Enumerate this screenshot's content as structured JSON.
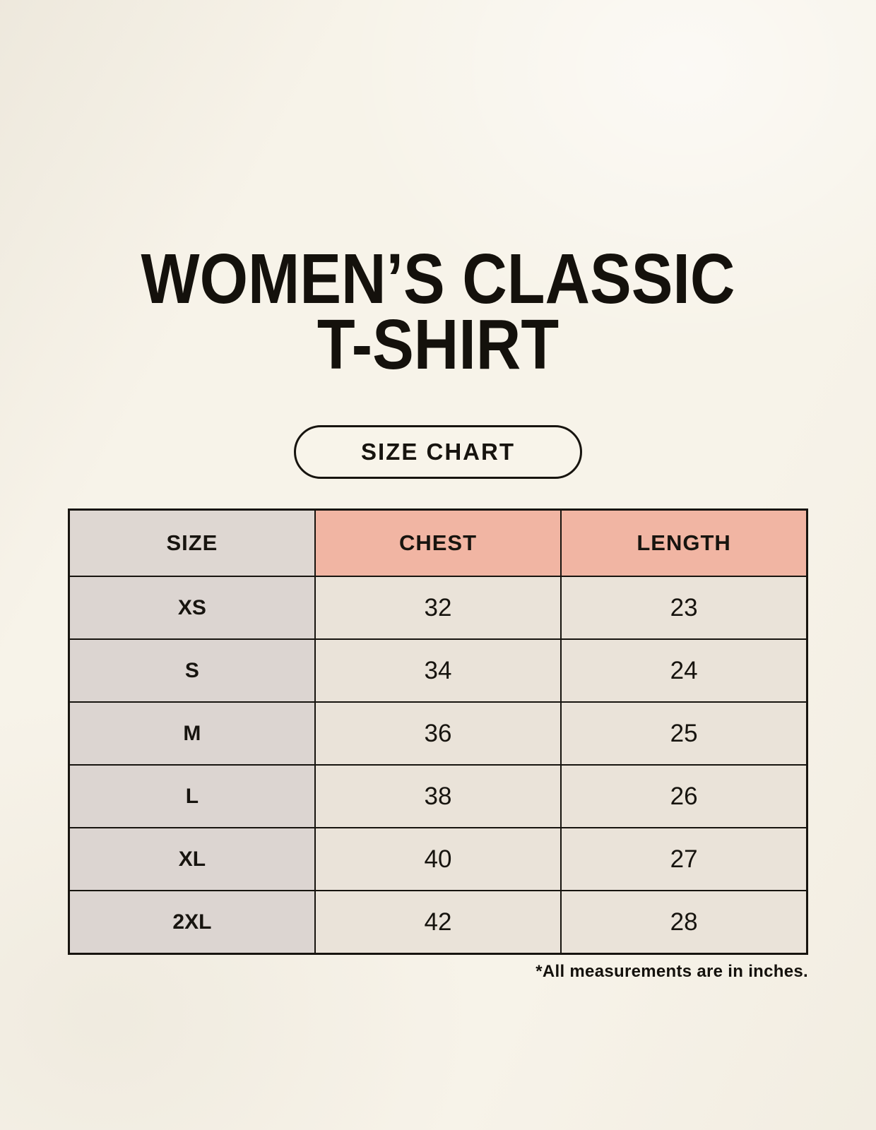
{
  "page": {
    "title_line1": "WOMEN’S CLASSIC",
    "title_line2": "T-SHIRT",
    "badge_label": "SIZE CHART",
    "footnote": "*All measurements are in inches."
  },
  "table": {
    "headers": [
      "SIZE",
      "CHEST",
      "LENGTH"
    ],
    "rows": [
      {
        "size": "XS",
        "chest": "32",
        "length": "23"
      },
      {
        "size": "S",
        "chest": "34",
        "length": "24"
      },
      {
        "size": "M",
        "chest": "36",
        "length": "25"
      },
      {
        "size": "L",
        "chest": "38",
        "length": "26"
      },
      {
        "size": "XL",
        "chest": "40",
        "length": "27"
      },
      {
        "size": "2XL",
        "chest": "42",
        "length": "28"
      }
    ]
  },
  "colors": {
    "page_background": "#f7f3e9",
    "header_size_bg": "#ded7d2",
    "header_measure_bg": "#f1b5a3",
    "size_column_bg": "#dcd5d1",
    "value_cell_bg": "#eae3d9",
    "border": "#17140f",
    "text": "#14110c"
  },
  "chart_data": {
    "type": "table",
    "title": "WOMEN’S CLASSIC T-SHIRT",
    "subtitle": "SIZE CHART",
    "columns": [
      "SIZE",
      "CHEST",
      "LENGTH"
    ],
    "rows": [
      [
        "XS",
        32,
        23
      ],
      [
        "S",
        34,
        24
      ],
      [
        "M",
        36,
        25
      ],
      [
        "L",
        38,
        26
      ],
      [
        "XL",
        40,
        27
      ],
      [
        "2XL",
        42,
        28
      ]
    ],
    "units": "inches",
    "note": "*All measurements are in inches.",
    "layout_hints": {
      "header_row_highlight": [
        "CHEST",
        "LENGTH"
      ],
      "grid": true,
      "legend": false
    }
  }
}
